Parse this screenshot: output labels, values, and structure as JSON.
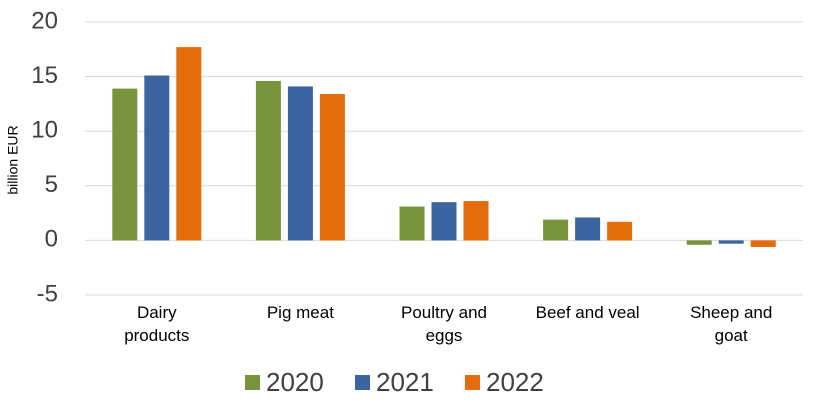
{
  "chart_data": {
    "type": "bar",
    "y_label": "billion EUR",
    "categories": [
      "Dairy products",
      "Pig meat",
      "Poultry and eggs",
      "Beef and veal",
      "Sheep and goat"
    ],
    "series": [
      {
        "name": "2020",
        "color": "#77933c",
        "values": [
          13.9,
          14.6,
          3.1,
          1.9,
          -0.4
        ]
      },
      {
        "name": "2021",
        "color": "#3b64a0",
        "values": [
          15.1,
          14.1,
          3.5,
          2.1,
          -0.3
        ]
      },
      {
        "name": "2022",
        "color": "#e46c0a",
        "values": [
          17.7,
          13.4,
          3.6,
          1.7,
          -0.6
        ]
      }
    ],
    "ylim": [
      -5,
      20
    ],
    "yticks": [
      -5,
      0,
      5,
      10,
      15,
      20
    ],
    "grid": true,
    "legend": "bottom"
  }
}
